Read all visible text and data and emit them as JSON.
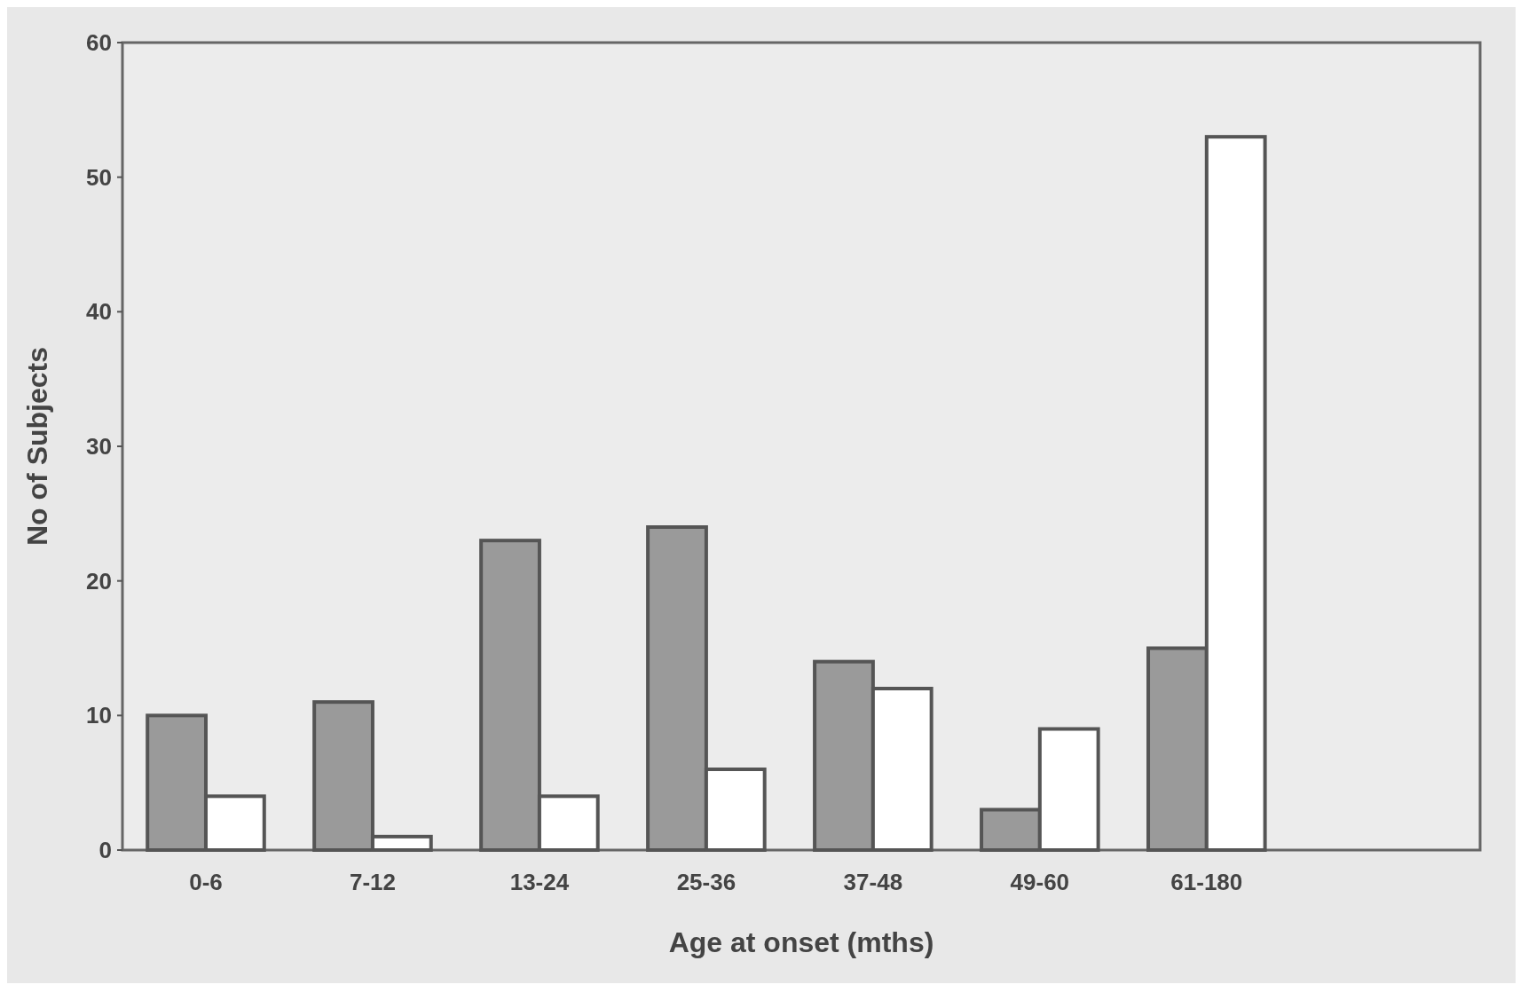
{
  "chart_data": {
    "type": "bar",
    "xlabel": "Age at onset (mths)",
    "ylabel": "No of Subjects",
    "categories": [
      "0-6",
      "7-12",
      "13-24",
      "25-36",
      "37-48",
      "49-60",
      "61-180"
    ],
    "series": [
      {
        "color": "#9a9a9a",
        "values": [
          10,
          11,
          23,
          24,
          14,
          3,
          15
        ]
      },
      {
        "color": "#ffffff",
        "values": [
          4,
          1,
          4,
          6,
          12,
          9,
          53
        ]
      }
    ],
    "ylim": [
      0,
      60
    ],
    "yticks": [
      0,
      10,
      20,
      30,
      40,
      50,
      60
    ],
    "grid": false
  }
}
